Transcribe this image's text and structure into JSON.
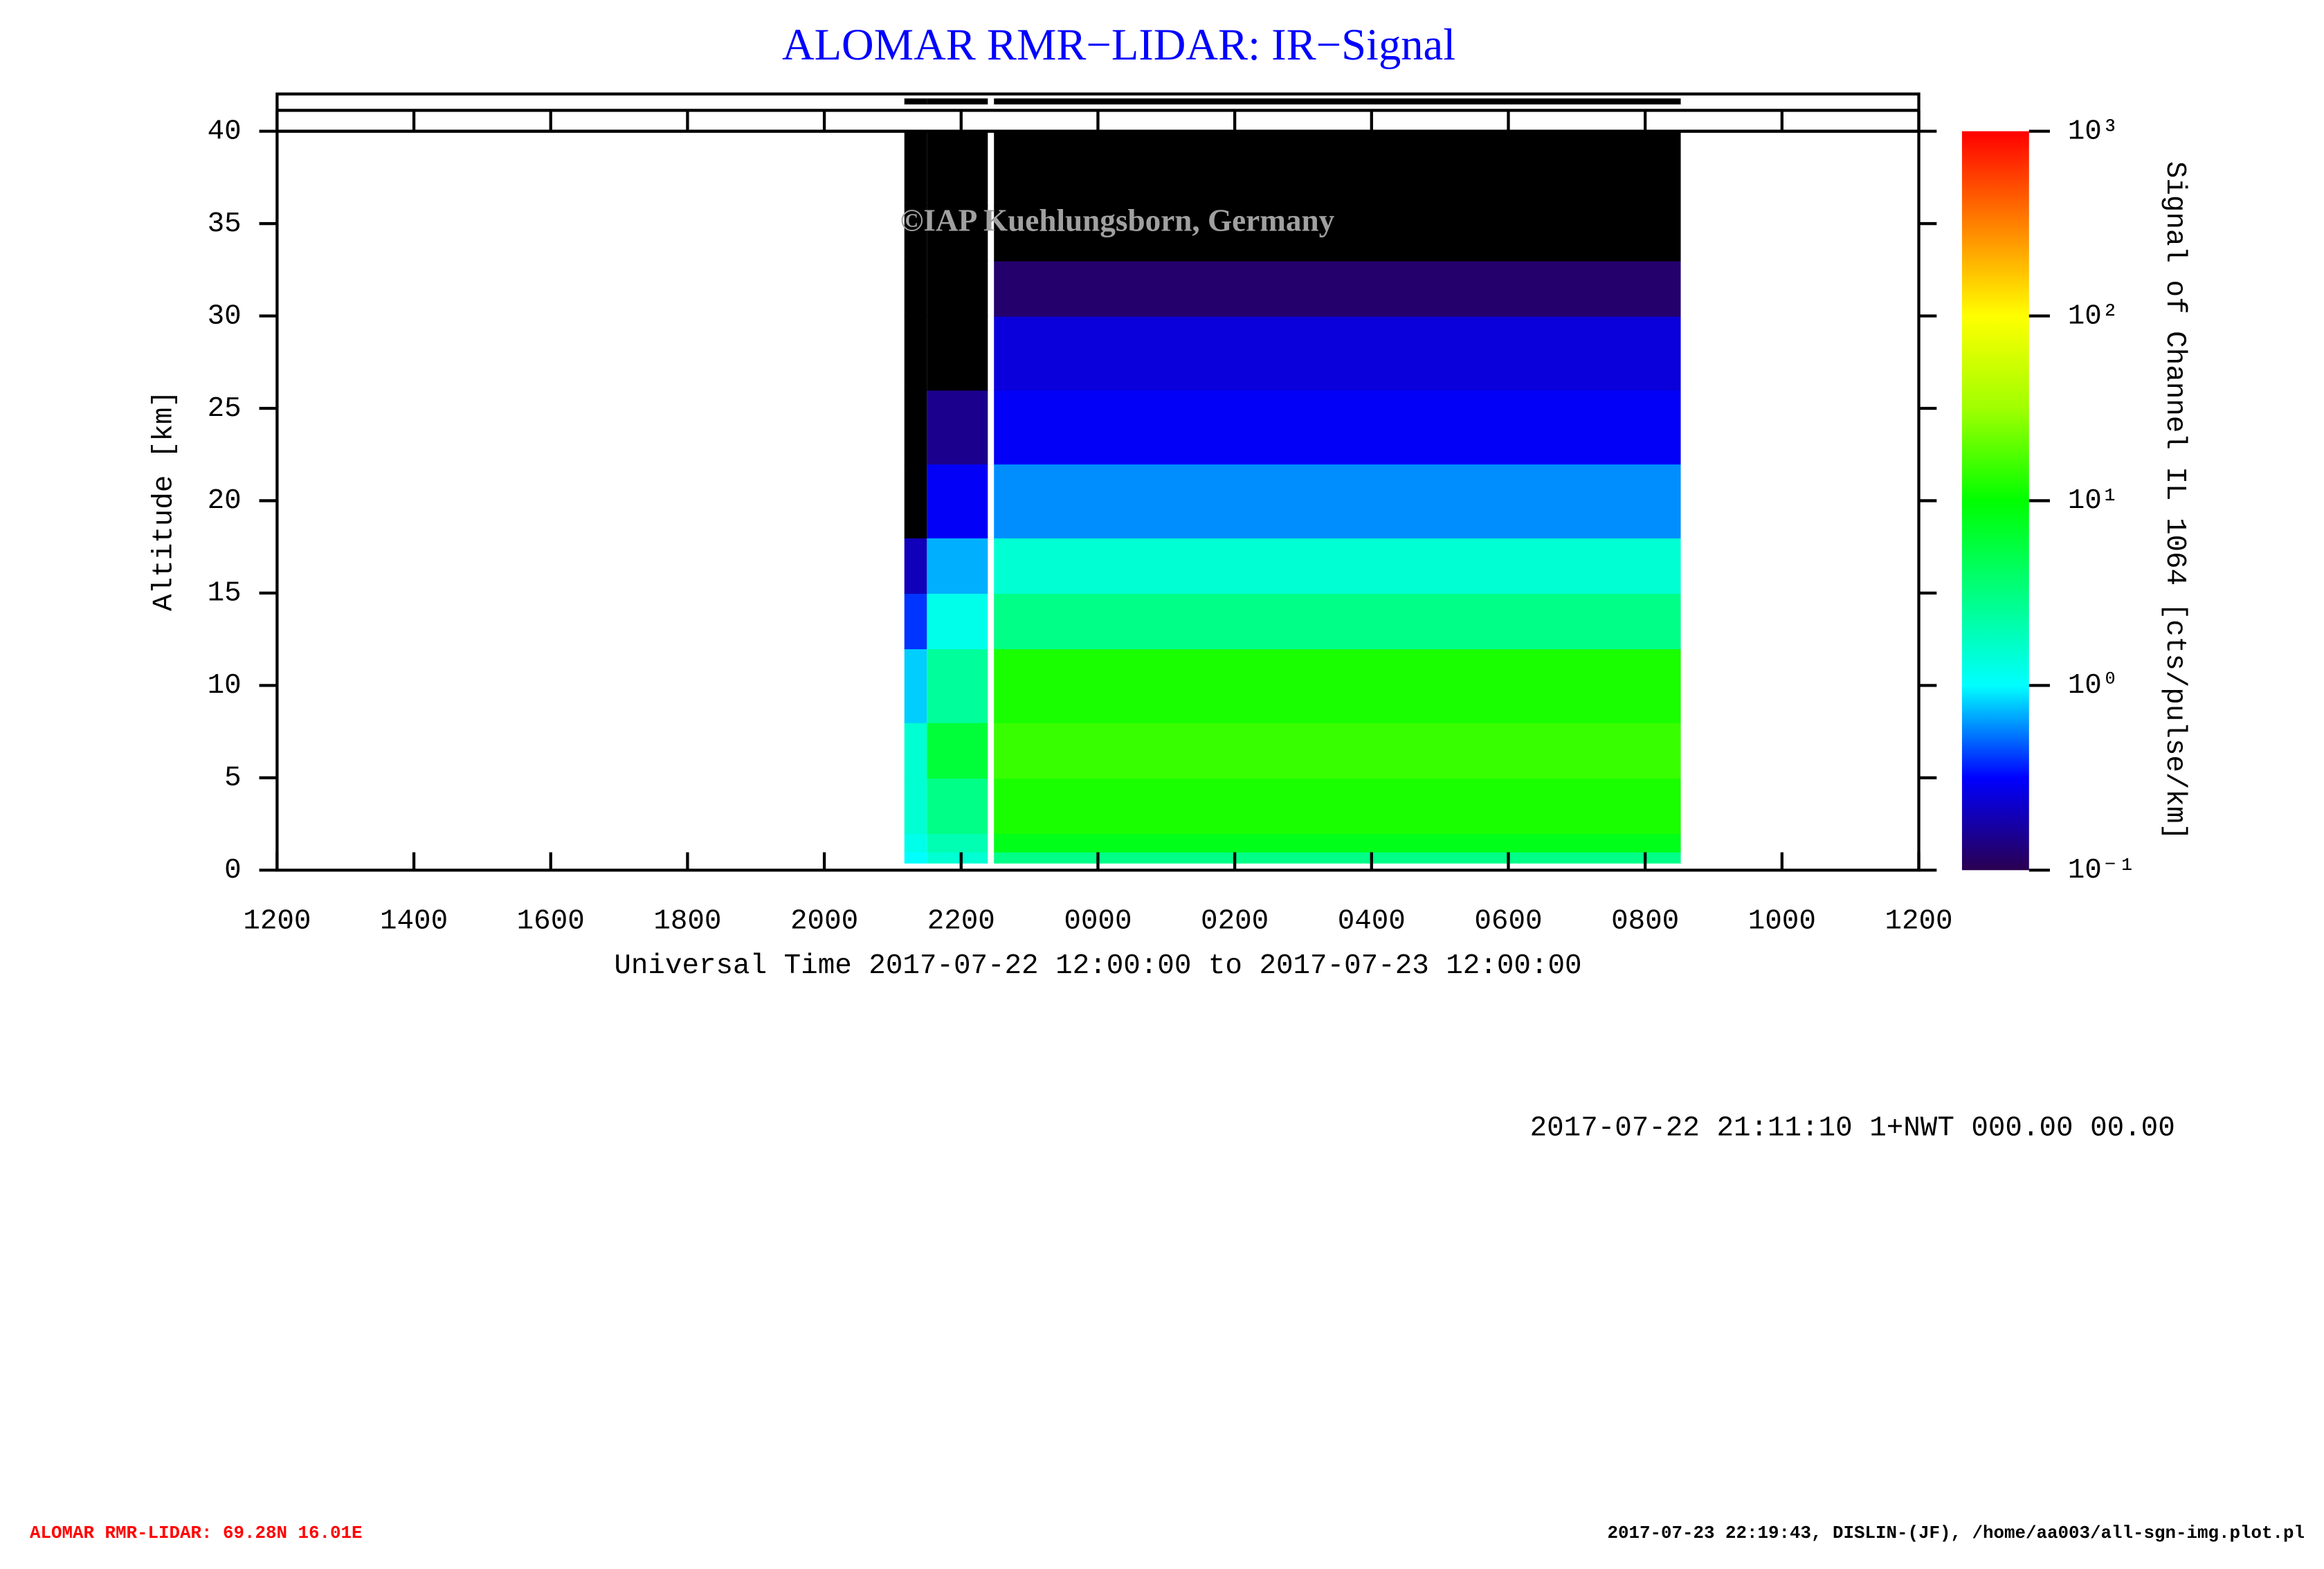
{
  "chart_data": {
    "type": "heatmap",
    "title": "ALOMAR RMR−LIDAR: IR−Signal",
    "watermark": "©IAP Kuehlungsborn, Germany",
    "x_label": "Universal Time 2017-07-22 12:00:00 to 2017-07-23 12:00:00",
    "y_label": "Altitude [km]",
    "colorbar_label": "Signal of Channel IL 1064 [cts/pulse/km]",
    "xlim": [
      0,
      24
    ],
    "xticks": [
      {
        "value": 0,
        "label": "1200"
      },
      {
        "value": 2,
        "label": "1400"
      },
      {
        "value": 4,
        "label": "1600"
      },
      {
        "value": 6,
        "label": "1800"
      },
      {
        "value": 8,
        "label": "2000"
      },
      {
        "value": 10,
        "label": "2200"
      },
      {
        "value": 12,
        "label": "0000"
      },
      {
        "value": 14,
        "label": "0200"
      },
      {
        "value": 16,
        "label": "0400"
      },
      {
        "value": 18,
        "label": "0600"
      },
      {
        "value": 20,
        "label": "0800"
      },
      {
        "value": 22,
        "label": "1000"
      },
      {
        "value": 24,
        "label": "1200"
      }
    ],
    "ylim": [
      0,
      40
    ],
    "yticks": [
      0,
      5,
      10,
      15,
      20,
      25,
      30,
      35,
      40
    ],
    "color_scale": "log",
    "clim": [
      0.1,
      1000
    ],
    "cticks": [
      {
        "value": 0.1,
        "label": "10⁻¹"
      },
      {
        "value": 1,
        "label": "10⁰"
      },
      {
        "value": 10,
        "label": "10¹"
      },
      {
        "value": 100,
        "label": "10²"
      },
      {
        "value": 1000,
        "label": "10³"
      }
    ],
    "colormap": [
      "#2a0050",
      "#0000ff",
      "#00ffff",
      "#00ff80",
      "#00ff00",
      "#a0ff00",
      "#ffff00",
      "#ff8000",
      "#ff0000"
    ],
    "under_color": "#000000",
    "altitude_edges": [
      0.4,
      1,
      2,
      5,
      8,
      12,
      15,
      18,
      22,
      26,
      30,
      33,
      36,
      40
    ],
    "segments": [
      {
        "start": 9.17,
        "end": 9.5,
        "signal": [
          1,
          1.2,
          1.5,
          1.5,
          0.8,
          0.4,
          0.2,
          0.05,
          0.03,
          0.03,
          0.03,
          0.03,
          0.03
        ]
      },
      {
        "start": 9.5,
        "end": 10.39,
        "signal": [
          1.5,
          2,
          3,
          6,
          2.5,
          1.2,
          0.7,
          0.3,
          0.15,
          0.05,
          0.03,
          0.03,
          0.03
        ]
      },
      {
        "start": 10.48,
        "end": 20.52,
        "signal": [
          3,
          8,
          12,
          15,
          12,
          3,
          1.5,
          0.6,
          0.3,
          0.25,
          0.12,
          0.06,
          0.03
        ]
      }
    ],
    "info_line": "2017-07-22 21:11:10 1+NWT 000.00 00.00",
    "footer_left": "ALOMAR RMR-LIDAR: 69.28N 16.01E",
    "footer_right": "2017-07-23 22:19:43, DISLIN-(JF), /home/aa003/all-sgn-img.plot.pl"
  }
}
